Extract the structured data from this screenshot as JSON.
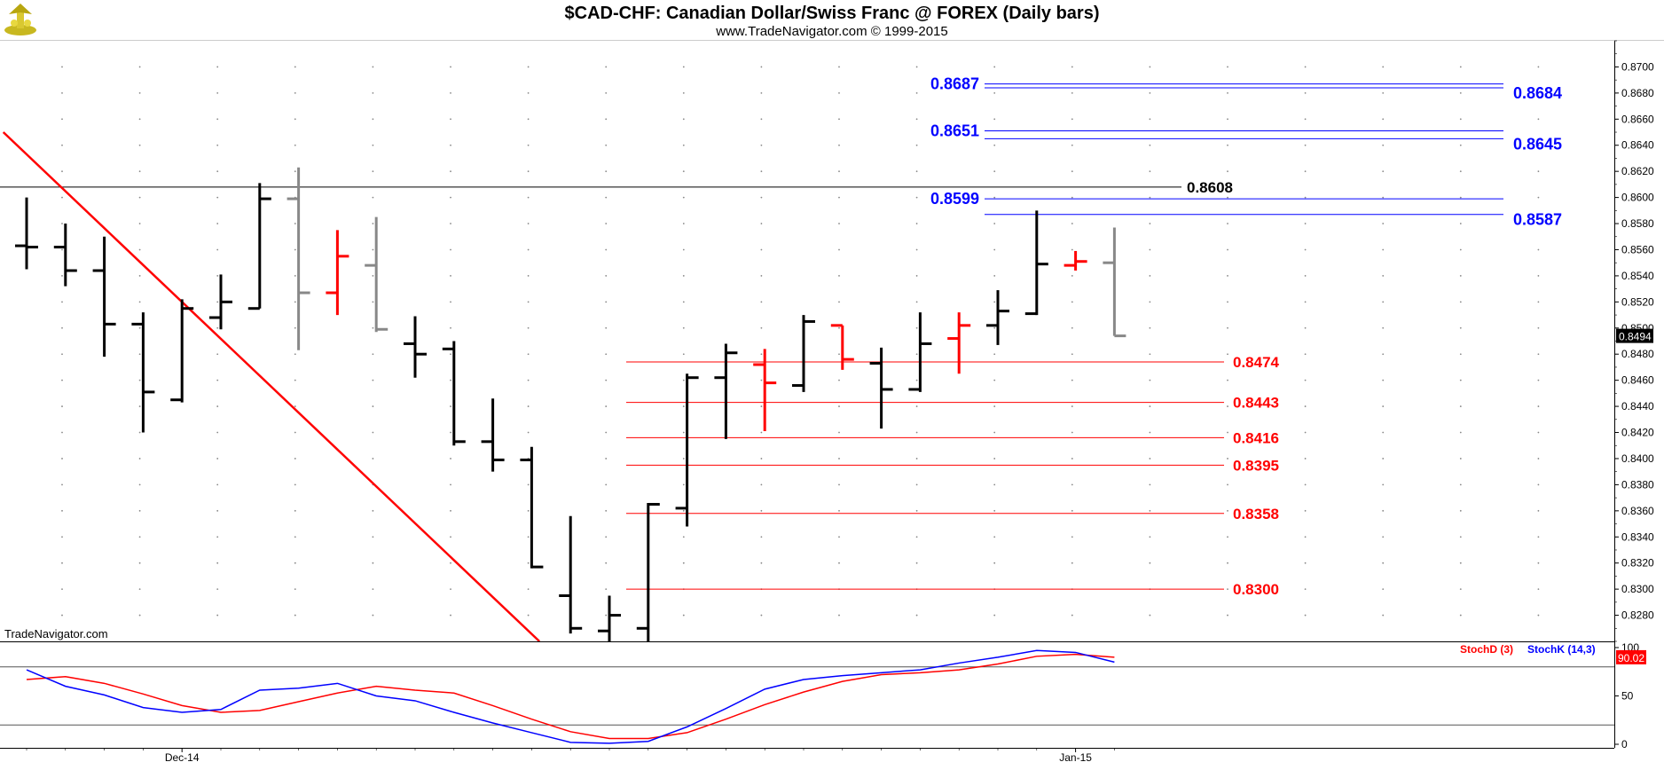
{
  "header": {
    "title": "$CAD-CHF:  Canadian Dollar/Swiss Franc @ FOREX  (Daily bars)",
    "subtitle": "www.TradeNavigator.com © 1999-2015",
    "watermark": "TradeNavigator.com"
  },
  "colors": {
    "up_bar": "#000000",
    "down_bar": "#ff0000",
    "neutral_bar": "#888888",
    "level_blue": "#0000ff",
    "level_red": "#ff0000",
    "trendline": "#ff0000",
    "stoch_d": "#ff0000",
    "stoch_k": "#0000ff"
  },
  "chart_data": [
    {
      "type": "ohlc",
      "ylim": [
        0.826,
        0.872
      ],
      "y_ticks": [
        "0.8280",
        "0.8300",
        "0.8320",
        "0.8340",
        "0.8360",
        "0.8380",
        "0.8400",
        "0.8420",
        "0.8440",
        "0.8460",
        "0.8480",
        "0.8500",
        "0.8520",
        "0.8540",
        "0.8560",
        "0.8580",
        "0.8600",
        "0.8620",
        "0.8640",
        "0.8660",
        "0.8680",
        "0.8700"
      ],
      "x_labels": [
        {
          "label": "Dec-14",
          "index": 4
        },
        {
          "label": "Jan-15",
          "index": 27
        }
      ],
      "last_price_label": "0.8494",
      "last_price": 0.8494,
      "bars": [
        {
          "o": 0.8563,
          "h": 0.86,
          "l": 0.8545,
          "c": 0.8562,
          "color": "up_bar"
        },
        {
          "o": 0.8562,
          "h": 0.858,
          "l": 0.8532,
          "c": 0.8544,
          "color": "up_bar"
        },
        {
          "o": 0.8544,
          "h": 0.857,
          "l": 0.8478,
          "c": 0.8503,
          "color": "up_bar"
        },
        {
          "o": 0.8503,
          "h": 0.8512,
          "l": 0.842,
          "c": 0.8451,
          "color": "up_bar"
        },
        {
          "o": 0.8445,
          "h": 0.8522,
          "l": 0.8443,
          "c": 0.8515,
          "color": "up_bar"
        },
        {
          "o": 0.8508,
          "h": 0.8541,
          "l": 0.8499,
          "c": 0.852,
          "color": "up_bar"
        },
        {
          "o": 0.8515,
          "h": 0.8611,
          "l": 0.8515,
          "c": 0.8599,
          "color": "up_bar"
        },
        {
          "o": 0.8599,
          "h": 0.8623,
          "l": 0.8483,
          "c": 0.8527,
          "color": "neutral_bar"
        },
        {
          "o": 0.8527,
          "h": 0.8575,
          "l": 0.851,
          "c": 0.8555,
          "color": "down_bar"
        },
        {
          "o": 0.8548,
          "h": 0.8585,
          "l": 0.8497,
          "c": 0.8499,
          "color": "neutral_bar"
        },
        {
          "o": 0.8488,
          "h": 0.8509,
          "l": 0.8462,
          "c": 0.848,
          "color": "up_bar"
        },
        {
          "o": 0.8484,
          "h": 0.849,
          "l": 0.841,
          "c": 0.8413,
          "color": "up_bar"
        },
        {
          "o": 0.8413,
          "h": 0.8446,
          "l": 0.839,
          "c": 0.8399,
          "color": "up_bar"
        },
        {
          "o": 0.8399,
          "h": 0.8409,
          "l": 0.8316,
          "c": 0.8317,
          "color": "up_bar"
        },
        {
          "o": 0.8295,
          "h": 0.8356,
          "l": 0.8266,
          "c": 0.827,
          "color": "up_bar"
        },
        {
          "o": 0.8268,
          "h": 0.8295,
          "l": 0.826,
          "c": 0.828,
          "color": "up_bar"
        },
        {
          "o": 0.827,
          "h": 0.8366,
          "l": 0.826,
          "c": 0.8365,
          "color": "up_bar"
        },
        {
          "o": 0.8362,
          "h": 0.8465,
          "l": 0.8348,
          "c": 0.8462,
          "color": "up_bar"
        },
        {
          "o": 0.8462,
          "h": 0.8488,
          "l": 0.8415,
          "c": 0.8481,
          "color": "up_bar"
        },
        {
          "o": 0.8472,
          "h": 0.8484,
          "l": 0.8421,
          "c": 0.8458,
          "color": "down_bar"
        },
        {
          "o": 0.8456,
          "h": 0.851,
          "l": 0.8451,
          "c": 0.8505,
          "color": "up_bar"
        },
        {
          "o": 0.8502,
          "h": 0.8502,
          "l": 0.8468,
          "c": 0.8476,
          "color": "down_bar"
        },
        {
          "o": 0.8473,
          "h": 0.8485,
          "l": 0.8423,
          "c": 0.8453,
          "color": "up_bar"
        },
        {
          "o": 0.8453,
          "h": 0.8512,
          "l": 0.8451,
          "c": 0.8488,
          "color": "up_bar"
        },
        {
          "o": 0.8492,
          "h": 0.8512,
          "l": 0.8465,
          "c": 0.8502,
          "color": "down_bar"
        },
        {
          "o": 0.8502,
          "h": 0.8529,
          "l": 0.8487,
          "c": 0.8513,
          "color": "up_bar"
        },
        {
          "o": 0.8511,
          "h": 0.859,
          "l": 0.851,
          "c": 0.8549,
          "color": "up_bar"
        },
        {
          "o": 0.8548,
          "h": 0.8559,
          "l": 0.8544,
          "c": 0.8551,
          "color": "down_bar"
        },
        {
          "o": 0.855,
          "h": 0.8577,
          "l": 0.8494,
          "c": 0.8494,
          "color": "neutral_bar"
        }
      ],
      "levels_blue": [
        {
          "value": 0.8687,
          "label": "0.8687",
          "side": "left"
        },
        {
          "value": 0.8684,
          "label": "0.8684",
          "side": "right"
        },
        {
          "value": 0.8651,
          "label": "0.8651",
          "side": "left"
        },
        {
          "value": 0.8645,
          "label": "0.8645",
          "side": "right"
        },
        {
          "value": 0.8599,
          "label": "0.8599",
          "side": "left"
        },
        {
          "value": 0.8587,
          "label": "0.8587",
          "side": "right"
        }
      ],
      "level_black": {
        "value": 0.8608,
        "label": "0.8608"
      },
      "levels_red": [
        {
          "value": 0.8474,
          "label": "0.8474"
        },
        {
          "value": 0.8443,
          "label": "0.8443"
        },
        {
          "value": 0.8416,
          "label": "0.8416"
        },
        {
          "value": 0.8395,
          "label": "0.8395"
        },
        {
          "value": 0.8358,
          "label": "0.8358"
        },
        {
          "value": 0.83,
          "label": "0.8300"
        }
      ],
      "trendline": {
        "from": {
          "index": -0.6,
          "value": 0.865
        },
        "to": {
          "index": 13.2,
          "value": 0.826
        }
      }
    },
    {
      "type": "line",
      "title": "",
      "ylim": [
        0,
        100
      ],
      "y_ticks": [
        "0",
        "50",
        "100"
      ],
      "reference_lines": [
        20,
        80
      ],
      "last_value_label": "90.02",
      "series": [
        {
          "name": "StochD (3)",
          "color": "stoch_d",
          "values": [
            67,
            70,
            63,
            52,
            40,
            33,
            35,
            44,
            53,
            60,
            56,
            53,
            40,
            26,
            13,
            6,
            6,
            12,
            26,
            41,
            54,
            65,
            72,
            74,
            77,
            83,
            91,
            93,
            90
          ]
        },
        {
          "name": "StochK (14,3)",
          "color": "stoch_k",
          "values": [
            77,
            60,
            51,
            38,
            33,
            36,
            56,
            58,
            63,
            50,
            45,
            33,
            22,
            12,
            2,
            1,
            3,
            18,
            37,
            57,
            67,
            71,
            74,
            77,
            84,
            90,
            97,
            95,
            85
          ]
        }
      ]
    }
  ]
}
